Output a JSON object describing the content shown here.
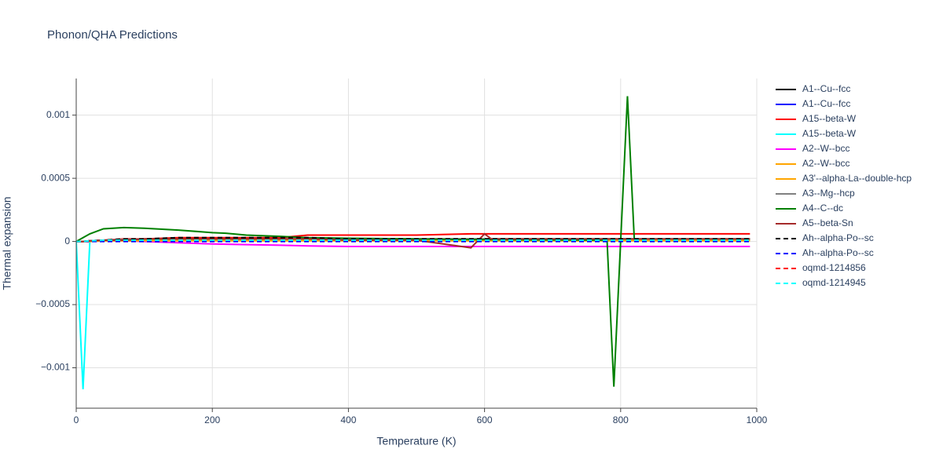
{
  "chart_data": {
    "type": "line",
    "title": "Phonon/QHA Predictions",
    "x_label": "Temperature (K)",
    "y_label": "Thermal expansion",
    "xlim": [
      0,
      1000
    ],
    "ylim": [
      -0.00132,
      0.00129
    ],
    "xticks": [
      0,
      200,
      400,
      600,
      800,
      1000
    ],
    "yticks": [
      {
        "value": -0.001,
        "label": "−0.001"
      },
      {
        "value": -0.0005,
        "label": "−0.0005"
      },
      0,
      0.0005,
      0.001
    ],
    "grid": true,
    "legend": "right",
    "x": [
      0,
      10,
      20,
      40,
      70,
      100,
      150,
      200,
      220,
      250,
      300,
      340,
      400,
      500,
      580,
      600,
      610,
      700,
      780,
      790,
      800,
      810,
      820,
      900,
      990
    ],
    "series": [
      {
        "name": "A1--Cu--fcc",
        "color": "#000000",
        "dash": false,
        "values": [
          0,
          0,
          5e-06,
          1e-05,
          1.5e-05,
          2e-05,
          2e-05,
          2e-05,
          2e-05,
          2e-05,
          2e-05,
          2e-05,
          2e-05,
          2e-05,
          2e-05,
          2e-05,
          2e-05,
          2e-05,
          2e-05,
          2e-05,
          2e-05,
          2e-05,
          2e-05,
          2e-05,
          2e-05
        ]
      },
      {
        "name": "A1--Cu--fcc",
        "color": "#0000ff",
        "dash": false,
        "values": [
          0,
          0,
          5e-06,
          1e-05,
          1e-05,
          1.5e-05,
          1.5e-05,
          1.5e-05,
          1.5e-05,
          1.5e-05,
          1.5e-05,
          1.5e-05,
          1.5e-05,
          1.5e-05,
          1.5e-05,
          1.5e-05,
          1.5e-05,
          1.5e-05,
          1.5e-05,
          1.5e-05,
          1.5e-05,
          1.5e-05,
          1.5e-05,
          1.5e-05,
          1.5e-05
        ]
      },
      {
        "name": "A15--beta-W",
        "color": "#ff0000",
        "dash": false,
        "values": [
          0,
          0,
          5e-06,
          1e-05,
          2e-05,
          2e-05,
          3e-05,
          3e-05,
          3e-05,
          3e-05,
          3e-05,
          5e-05,
          5e-05,
          5e-05,
          6e-05,
          6e-05,
          6e-05,
          6e-05,
          6e-05,
          6e-05,
          6e-05,
          6e-05,
          6e-05,
          6e-05,
          6e-05
        ]
      },
      {
        "name": "A15--beta-W",
        "color": "#00ffff",
        "dash": false,
        "values": [
          0,
          -0.00117,
          0,
          1e-05,
          1e-05,
          1e-05,
          1e-05,
          1e-05,
          1e-05,
          1e-05,
          1e-05,
          1e-05,
          1e-05,
          1e-05,
          1e-05,
          1e-05,
          1e-05,
          1e-05,
          1e-05,
          1e-05,
          1e-05,
          1e-05,
          1e-05,
          1e-05,
          1e-05
        ]
      },
      {
        "name": "A2--W--bcc",
        "color": "#ff00ff",
        "dash": false,
        "values": [
          0,
          0,
          0,
          5e-06,
          5e-06,
          0,
          -1e-05,
          -2e-05,
          -2.2e-05,
          -2.5e-05,
          -3e-05,
          -3.5e-05,
          -4e-05,
          -4e-05,
          -4e-05,
          -4e-05,
          -4e-05,
          -4e-05,
          -4e-05,
          -4e-05,
          -4e-05,
          -4e-05,
          -4e-05,
          -4e-05,
          -4e-05
        ]
      },
      {
        "name": "A2--W--bcc",
        "color": "#ffa500",
        "dash": false,
        "values": [
          0,
          0,
          0,
          1e-05,
          1e-05,
          1e-05,
          1e-05,
          1e-05,
          1e-05,
          1e-05,
          1e-05,
          1e-05,
          1e-05,
          1e-05,
          1e-05,
          1e-05,
          1e-05,
          1e-05,
          1e-05,
          1e-05,
          1e-05,
          1e-05,
          1e-05,
          1e-05,
          1e-05
        ]
      },
      {
        "name": "A3'--alpha-La--double-hcp",
        "color": "#ffa500",
        "dash": false,
        "values": [
          0,
          0,
          0,
          5e-06,
          5e-06,
          5e-06,
          5e-06,
          5e-06,
          5e-06,
          5e-06,
          5e-06,
          5e-06,
          5e-06,
          5e-06,
          5e-06,
          5e-06,
          5e-06,
          5e-06,
          5e-06,
          5e-06,
          5e-06,
          5e-06,
          5e-06,
          5e-06,
          5e-06
        ]
      },
      {
        "name": "A3--Mg--hcp",
        "color": "#808080",
        "dash": false,
        "values": [
          0,
          0,
          5e-06,
          1e-05,
          1.5e-05,
          2e-05,
          2e-05,
          2e-05,
          2e-05,
          2e-05,
          2e-05,
          2e-05,
          2e-05,
          2e-05,
          2e-05,
          2e-05,
          2e-05,
          2e-05,
          2e-05,
          2e-05,
          2e-05,
          2e-05,
          2e-05,
          2e-05,
          2e-05
        ]
      },
      {
        "name": "A4--C--dc",
        "color": "#008000",
        "dash": false,
        "values": [
          0,
          3e-05,
          6e-05,
          0.0001,
          0.00011,
          0.000105,
          9e-05,
          7e-05,
          6.5e-05,
          5e-05,
          4e-05,
          3e-05,
          2.5e-05,
          2e-05,
          1.5e-05,
          1.5e-05,
          1.5e-05,
          1.2e-05,
          1e-05,
          -0.00115,
          0,
          0.00115,
          2e-05,
          null,
          null
        ]
      },
      {
        "name": "A5--beta-Sn",
        "color": "#a52a2a",
        "dash": false,
        "values": [
          0,
          0,
          5e-06,
          1e-05,
          1e-05,
          2e-05,
          2e-05,
          2e-05,
          2e-05,
          2e-05,
          2e-05,
          2e-05,
          1e-05,
          1e-05,
          -5e-05,
          6e-05,
          2e-05,
          2e-05,
          2e-05,
          2e-05,
          2e-05,
          2e-05,
          2e-05,
          2e-05,
          2e-05
        ]
      },
      {
        "name": "Ah--alpha-Po--sc",
        "color": "#000000",
        "dash": true,
        "values": [
          0,
          0,
          5e-06,
          1e-05,
          2e-05,
          2e-05,
          3e-05,
          3e-05,
          3e-05,
          3e-05,
          3e-05,
          3e-05,
          2e-05,
          2e-05,
          2e-05,
          2e-05,
          2e-05,
          2e-05,
          2e-05,
          2e-05,
          2e-05,
          2e-05,
          2e-05,
          2e-05,
          2e-05
        ]
      },
      {
        "name": "Ah--alpha-Po--sc",
        "color": "#0000ff",
        "dash": true,
        "values": [
          0,
          0,
          0,
          0,
          0,
          0,
          0,
          0,
          0,
          0,
          0,
          0,
          0,
          0,
          0,
          0,
          0,
          0,
          0,
          0,
          0,
          0,
          0,
          0,
          0
        ]
      },
      {
        "name": "oqmd-1214856",
        "color": "#ff0000",
        "dash": true,
        "values": [
          0,
          0,
          5e-06,
          1e-05,
          1e-05,
          1e-05,
          1e-05,
          1e-05,
          1e-05,
          1e-05,
          1e-05,
          1e-05,
          1e-05,
          1e-05,
          1e-05,
          1e-05,
          1e-05,
          1e-05,
          1e-05,
          1e-05,
          1e-05,
          1e-05,
          1e-05,
          1e-05,
          1e-05
        ]
      },
      {
        "name": "oqmd-1214945",
        "color": "#00ffff",
        "dash": true,
        "values": [
          0,
          0,
          5e-06,
          1e-05,
          1e-05,
          1e-05,
          1e-05,
          1e-05,
          1e-05,
          1e-05,
          1e-05,
          1e-05,
          1e-05,
          1e-05,
          1e-05,
          1e-05,
          1e-05,
          1e-05,
          1e-05,
          1e-05,
          1e-05,
          1e-05,
          1e-05,
          1e-05,
          1e-05
        ]
      }
    ]
  }
}
